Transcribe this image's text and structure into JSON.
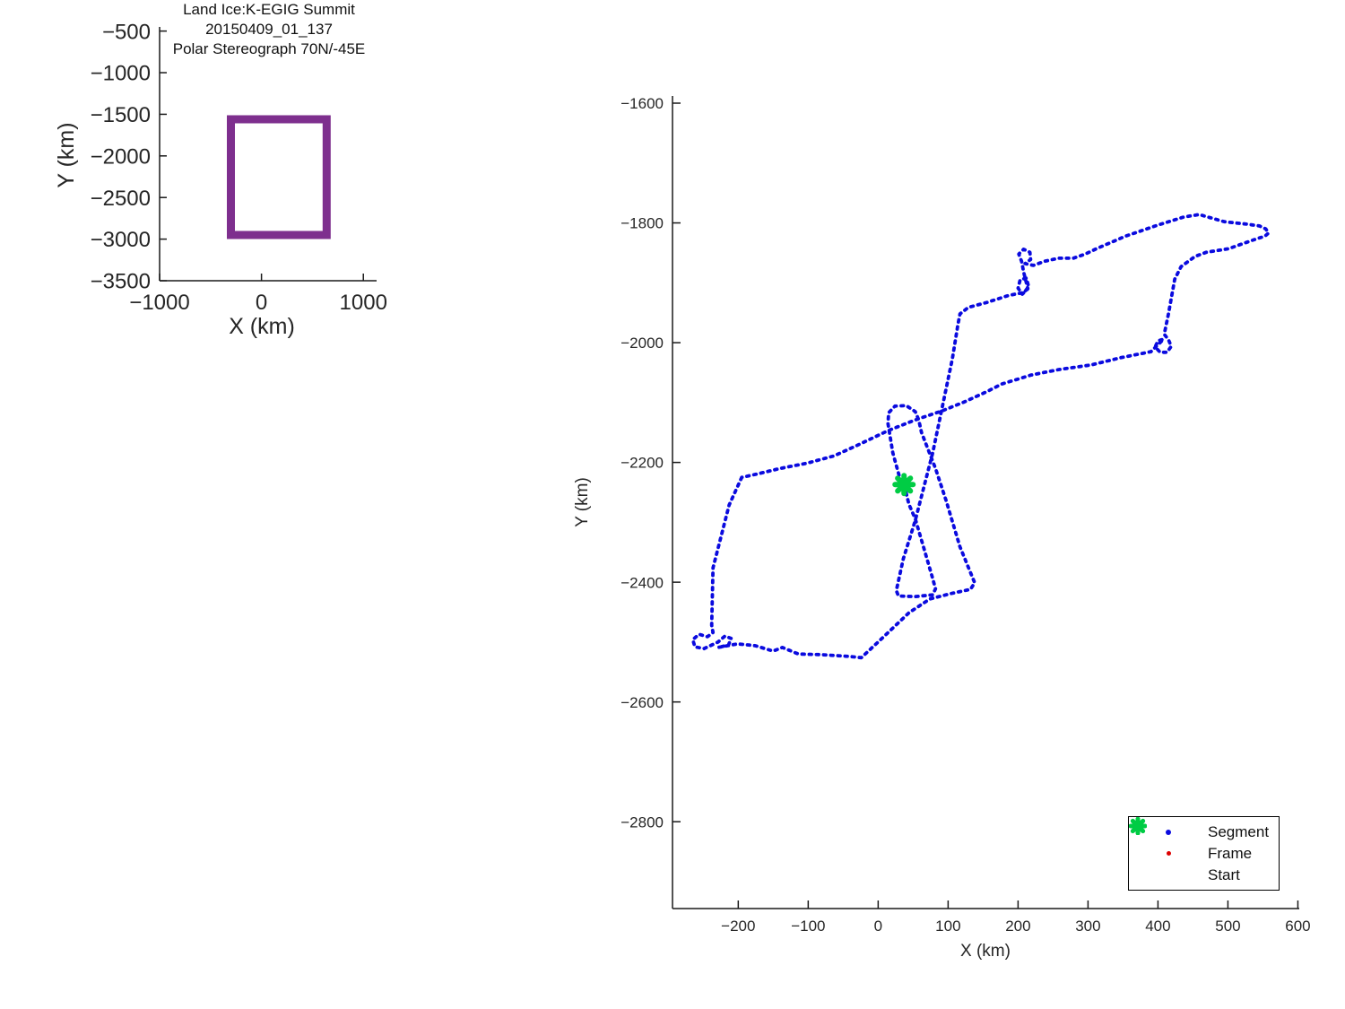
{
  "figure": {
    "background": "#ffffff",
    "text_color": "#262626",
    "axis_color": "#1a1a1a"
  },
  "inset_plot": {
    "xlabel": "X (km)",
    "ylabel": "Y (km)"
  },
  "main_plot": {
    "title_line1": "Land Ice:K-EGIG Summit",
    "title_line2": "20150409_01_137",
    "title_line3": "Polar Stereograph 70N/-45E",
    "xlabel": "X (km)",
    "ylabel": "Y (km)",
    "legend": {
      "segment_label": "Segment",
      "frame_label": "Frame",
      "start_label": "Start"
    }
  },
  "chart_data": [
    {
      "name": "coverage-overview",
      "type": "line",
      "xlabel": "X (km)",
      "ylabel": "Y (km)",
      "x_ticks": [
        -1000,
        0,
        1000
      ],
      "y_ticks": [
        -500,
        -1000,
        -1500,
        -2000,
        -2500,
        -3000,
        -3500
      ],
      "xlim": [
        -1000,
        1130
      ],
      "ylim": [
        -3500,
        -450
      ],
      "grid": false,
      "series": [
        {
          "name": "flight-extent-box",
          "color": "#7E2F8E",
          "line_width": 9,
          "closed": true,
          "points": [
            [
              -300,
              -1560
            ],
            [
              640,
              -1560
            ],
            [
              640,
              -2950
            ],
            [
              -300,
              -2950
            ]
          ]
        }
      ]
    },
    {
      "name": "flight-track",
      "type": "line",
      "title": "Land Ice:K-EGIG Summit 20150409_01_137 Polar Stereograph 70N/-45E",
      "xlabel": "X (km)",
      "ylabel": "Y (km)",
      "x_ticks": [
        -200,
        -100,
        0,
        100,
        200,
        300,
        400,
        500,
        600
      ],
      "y_ticks": [
        -1600,
        -1800,
        -2000,
        -2200,
        -2400,
        -2600,
        -2800
      ],
      "xlim": [
        -294,
        602
      ],
      "ylim": [
        -2945,
        -1588
      ],
      "grid": false,
      "legend_position": "lower right",
      "series": [
        {
          "name": "Segment",
          "style": "dotted",
          "color": "#0A0ADF",
          "points": [
            [
              -195,
              -2225
            ],
            [
              -213,
              -2271
            ],
            [
              -236,
              -2376
            ],
            [
              -238,
              -2472
            ],
            [
              -236,
              -2484
            ],
            [
              -244,
              -2491
            ],
            [
              -256,
              -2487
            ],
            [
              -265,
              -2496
            ],
            [
              -262,
              -2508
            ],
            [
              -249,
              -2511
            ],
            [
              -229,
              -2500
            ],
            [
              -219,
              -2490
            ],
            [
              -210,
              -2494
            ],
            [
              -214,
              -2505
            ],
            [
              -229,
              -2509
            ],
            [
              -201,
              -2503
            ],
            [
              -176,
              -2506
            ],
            [
              -150,
              -2515
            ],
            [
              -137,
              -2509
            ],
            [
              -114,
              -2520
            ],
            [
              -82,
              -2521
            ],
            [
              -41,
              -2524
            ],
            [
              -24,
              -2526
            ],
            [
              8,
              -2491
            ],
            [
              44,
              -2451
            ],
            [
              74,
              -2428
            ],
            [
              104,
              -2419
            ],
            [
              132,
              -2412
            ],
            [
              138,
              -2401
            ],
            [
              117,
              -2341
            ],
            [
              97,
              -2263
            ],
            [
              82,
              -2210
            ],
            [
              62,
              -2150
            ],
            [
              58,
              -2129
            ],
            [
              53,
              -2115
            ],
            [
              40,
              -2105
            ],
            [
              24,
              -2106
            ],
            [
              15,
              -2117
            ],
            [
              14,
              -2135
            ],
            [
              21,
              -2184
            ],
            [
              31,
              -2226
            ],
            [
              37,
              -2237
            ],
            [
              44,
              -2270
            ],
            [
              53,
              -2294
            ],
            [
              65,
              -2342
            ],
            [
              78,
              -2394
            ],
            [
              82,
              -2411
            ],
            [
              78,
              -2421
            ],
            [
              53,
              -2424
            ],
            [
              29,
              -2423
            ],
            [
              26,
              -2414
            ],
            [
              36,
              -2361
            ],
            [
              53,
              -2297
            ],
            [
              78,
              -2184
            ],
            [
              106,
              -2027
            ],
            [
              114,
              -1970
            ],
            [
              117,
              -1952
            ],
            [
              129,
              -1941
            ],
            [
              155,
              -1933
            ],
            [
              187,
              -1921
            ],
            [
              209,
              -1916
            ],
            [
              215,
              -1906
            ],
            [
              212,
              -1892
            ],
            [
              203,
              -1895
            ],
            [
              200,
              -1909
            ],
            [
              206,
              -1919
            ],
            [
              214,
              -1910
            ],
            [
              208,
              -1882
            ],
            [
              205,
              -1864
            ],
            [
              201,
              -1852
            ],
            [
              208,
              -1844
            ],
            [
              217,
              -1849
            ],
            [
              218,
              -1861
            ],
            [
              210,
              -1868
            ],
            [
              222,
              -1871
            ],
            [
              238,
              -1864
            ],
            [
              258,
              -1859
            ],
            [
              279,
              -1859
            ],
            [
              296,
              -1852
            ],
            [
              312,
              -1843
            ],
            [
              354,
              -1822
            ],
            [
              399,
              -1804
            ],
            [
              437,
              -1790
            ],
            [
              459,
              -1786
            ],
            [
              495,
              -1798
            ],
            [
              527,
              -1802
            ],
            [
              545,
              -1805
            ],
            [
              554,
              -1810
            ],
            [
              558,
              -1817
            ],
            [
              553,
              -1822
            ],
            [
              535,
              -1829
            ],
            [
              501,
              -1843
            ],
            [
              469,
              -1849
            ],
            [
              453,
              -1856
            ],
            [
              433,
              -1873
            ],
            [
              424,
              -1894
            ],
            [
              415,
              -1952
            ],
            [
              409,
              -1986
            ],
            [
              415,
              -1995
            ],
            [
              419,
              -2006
            ],
            [
              413,
              -2016
            ],
            [
              403,
              -2016
            ],
            [
              396,
              -2007
            ],
            [
              400,
              -1997
            ],
            [
              408,
              -1994
            ],
            [
              390,
              -2015
            ],
            [
              347,
              -2025
            ],
            [
              305,
              -2037
            ],
            [
              258,
              -2045
            ],
            [
              219,
              -2054
            ],
            [
              177,
              -2069
            ],
            [
              155,
              -2082
            ],
            [
              123,
              -2099
            ],
            [
              91,
              -2114
            ],
            [
              53,
              -2129
            ],
            [
              14,
              -2147
            ],
            [
              -31,
              -2172
            ],
            [
              -63,
              -2189
            ],
            [
              -101,
              -2201
            ],
            [
              -140,
              -2210
            ],
            [
              -172,
              -2219
            ],
            [
              -195,
              -2225
            ]
          ]
        },
        {
          "name": "Frame",
          "style": "dot-marker",
          "color": "#DD0000",
          "points": []
        },
        {
          "name": "Start",
          "style": "star-marker",
          "color": "#00CC44",
          "points": [
            [
              37,
              -2237
            ]
          ]
        }
      ]
    }
  ]
}
